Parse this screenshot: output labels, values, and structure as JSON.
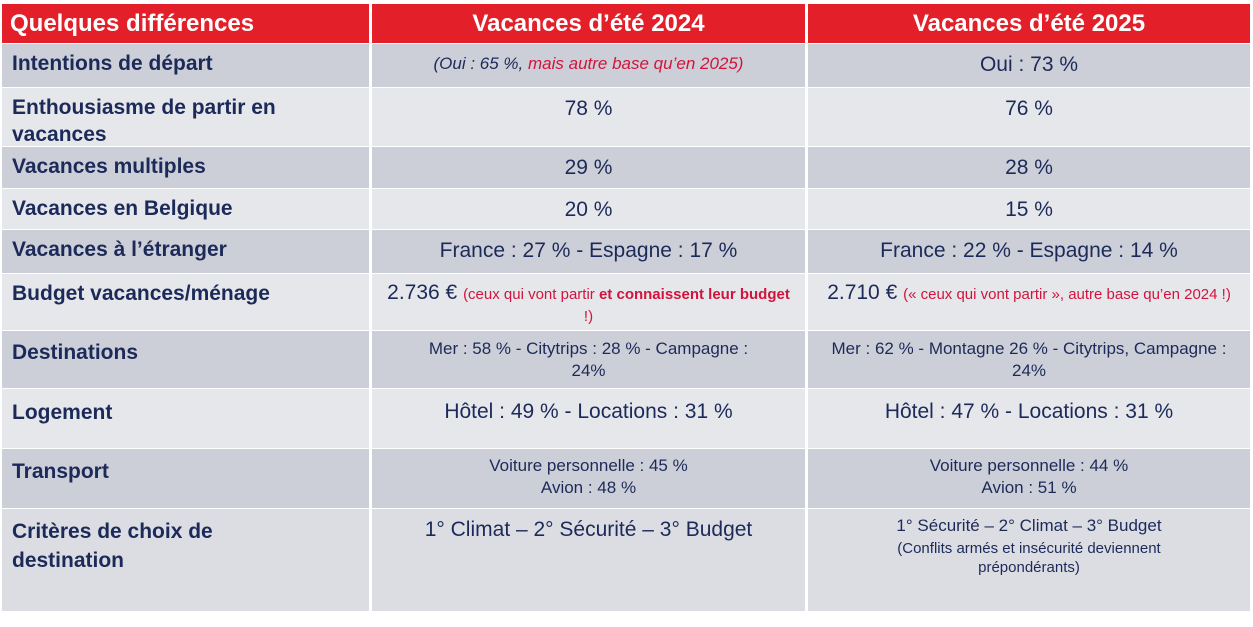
{
  "header": {
    "col0": "Quelques différences",
    "col1": "Vacances d’été 2024",
    "col2": "Vacances d’été 2025"
  },
  "rows": [
    {
      "label": "Intentions de départ",
      "v2024_a": "(Oui : 65 %, ",
      "v2024_b": "mais autre base qu’en 2025)",
      "v2025": "Oui : 73 %"
    },
    {
      "label": "Enthousiasme de partir en vacances",
      "v2024": "78 %",
      "v2025": "76 %"
    },
    {
      "label": "Vacances multiples",
      "v2024": "29 %",
      "v2025": "28 %"
    },
    {
      "label": "Vacances en Belgique",
      "v2024": "20 %",
      "v2025": "15 %"
    },
    {
      "label": "Vacances à l’étranger",
      "v2024": "France : 27 % - Espagne : 17 %",
      "v2025": "France : 22 % - Espagne : 14 %"
    },
    {
      "label": "Budget vacances/ménage",
      "v2024_amount": "2.736 €",
      "v2024_note_a": "(ceux qui vont partir ",
      "v2024_note_b": "et connaissent leur budget",
      "v2024_note_c": " !)",
      "v2025_amount": "2.710 €",
      "v2025_note": "(« ceux qui vont partir », autre base qu’en 2024 !)"
    },
    {
      "label": "Destinations",
      "v2024": "Mer : 58 % - Citytrips : 28 % - Campagne : 24%",
      "v2025": "Mer : 62 % - Montagne 26 % - Citytrips, Campagne : 24%"
    },
    {
      "label": "Logement",
      "v2024": "Hôtel : 49 % - Locations : 31 %",
      "v2025": "Hôtel : 47 % - Locations : 31 %"
    },
    {
      "label": "Transport",
      "v2024_l1": "Voiture personnelle : 45 %",
      "v2024_l2": "Avion : 48 %",
      "v2025_l1": "Voiture personnelle : 44 %",
      "v2025_l2": "Avion : 51 %"
    },
    {
      "label": "Critères de choix de destination",
      "v2024": "1° Climat – 2° Sécurité – 3° Budget",
      "v2025": "1° Sécurité – 2° Climat – 3° Budget",
      "v2025_note": "(Conflits armés et insécurité deviennent prépondérants)"
    }
  ]
}
